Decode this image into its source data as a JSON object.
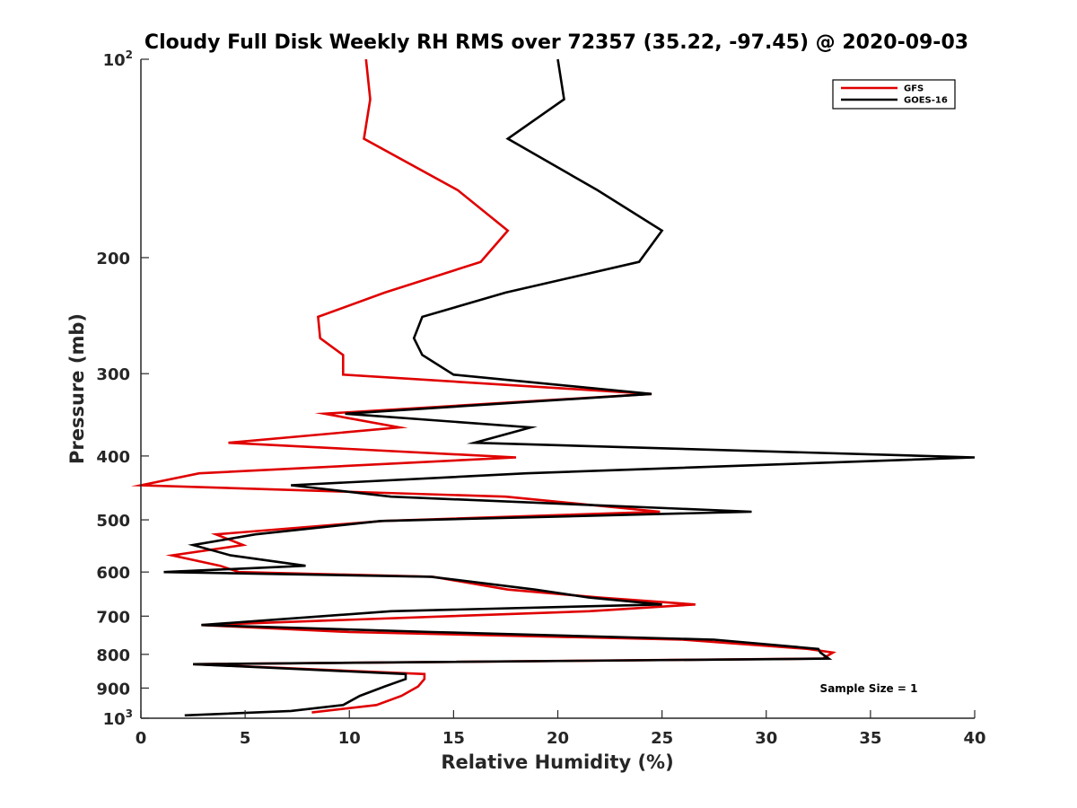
{
  "chart_data": {
    "type": "line",
    "title": "Cloudy Full Disk Weekly RH RMS over 72357 (35.22, -97.45) @ 2020-09-03",
    "xlabel": "Relative Humidity (%)",
    "ylabel": "Pressure (mb)",
    "xlim": [
      0,
      40
    ],
    "ylim": [
      100,
      1000
    ],
    "y_scale": "log",
    "y_reversed": true,
    "grid": false,
    "legend_position": "top-right",
    "x_ticks": [
      "0",
      "5",
      "10",
      "15",
      "20",
      "25",
      "30",
      "35",
      "40"
    ],
    "x_tick_values": [
      0,
      5,
      10,
      15,
      20,
      25,
      30,
      35,
      40
    ],
    "y_ticks": [
      {
        "value": 100,
        "base": "10",
        "exp": "2"
      },
      {
        "value": 200,
        "base": "200",
        "exp": ""
      },
      {
        "value": 300,
        "base": "300",
        "exp": ""
      },
      {
        "value": 400,
        "base": "400",
        "exp": ""
      },
      {
        "value": 500,
        "base": "500",
        "exp": ""
      },
      {
        "value": 600,
        "base": "600",
        "exp": ""
      },
      {
        "value": 700,
        "base": "700",
        "exp": ""
      },
      {
        "value": 800,
        "base": "800",
        "exp": ""
      },
      {
        "value": 900,
        "base": "900",
        "exp": ""
      },
      {
        "value": 1000,
        "base": "10",
        "exp": "3"
      }
    ],
    "annotation": "Sample Size = 1",
    "series": [
      {
        "name": "GFS",
        "color": "#e00000",
        "points": [
          [
            10.8,
            100
          ],
          [
            11.0,
            115
          ],
          [
            10.7,
            132
          ],
          [
            15.2,
            158
          ],
          [
            17.6,
            182
          ],
          [
            16.3,
            203
          ],
          [
            11.7,
            226
          ],
          [
            8.5,
            246
          ],
          [
            8.6,
            265
          ],
          [
            9.7,
            281
          ],
          [
            9.7,
            301
          ],
          [
            24.5,
            322
          ],
          [
            8.8,
            345
          ],
          [
            12.4,
            362
          ],
          [
            4.2,
            382
          ],
          [
            18.0,
            402
          ],
          [
            2.8,
            425
          ],
          [
            0.0,
            443
          ],
          [
            17.5,
            461
          ],
          [
            24.9,
            486
          ],
          [
            11.6,
            502
          ],
          [
            3.6,
            526
          ],
          [
            4.9,
            546
          ],
          [
            1.5,
            566
          ],
          [
            3.8,
            587
          ],
          [
            4.7,
            600
          ],
          [
            14.0,
            610
          ],
          [
            17.6,
            638
          ],
          [
            22.0,
            656
          ],
          [
            26.6,
            672
          ],
          [
            21.5,
            688
          ],
          [
            2.9,
            722
          ],
          [
            10.0,
            740
          ],
          [
            26.0,
            760
          ],
          [
            32.0,
            785
          ],
          [
            33.2,
            795
          ],
          [
            32.7,
            812
          ],
          [
            2.5,
            828
          ],
          [
            13.6,
            857
          ],
          [
            13.6,
            872
          ],
          [
            13.3,
            895
          ],
          [
            12.5,
            925
          ],
          [
            11.3,
            955
          ],
          [
            8.2,
            980
          ]
        ]
      },
      {
        "name": "GOES-16",
        "color": "#000000",
        "points": [
          [
            20.0,
            100
          ],
          [
            20.3,
            115
          ],
          [
            17.6,
            132
          ],
          [
            21.9,
            158
          ],
          [
            25.0,
            182
          ],
          [
            23.9,
            203
          ],
          [
            17.5,
            226
          ],
          [
            13.5,
            246
          ],
          [
            13.1,
            265
          ],
          [
            13.5,
            281
          ],
          [
            15.0,
            301
          ],
          [
            24.5,
            322
          ],
          [
            9.8,
            345
          ],
          [
            18.7,
            362
          ],
          [
            16.0,
            382
          ],
          [
            40.0,
            402
          ],
          [
            18.5,
            425
          ],
          [
            7.2,
            443
          ],
          [
            12.0,
            461
          ],
          [
            29.3,
            486
          ],
          [
            11.5,
            502
          ],
          [
            5.5,
            526
          ],
          [
            2.5,
            546
          ],
          [
            4.3,
            566
          ],
          [
            7.9,
            587
          ],
          [
            1.1,
            600
          ],
          [
            13.9,
            610
          ],
          [
            18.9,
            638
          ],
          [
            21.5,
            656
          ],
          [
            25.0,
            672
          ],
          [
            12.0,
            688
          ],
          [
            2.9,
            722
          ],
          [
            14.0,
            740
          ],
          [
            27.5,
            760
          ],
          [
            32.5,
            785
          ],
          [
            32.6,
            795
          ],
          [
            33.0,
            812
          ],
          [
            2.5,
            828
          ],
          [
            12.7,
            857
          ],
          [
            12.7,
            872
          ],
          [
            11.7,
            895
          ],
          [
            10.5,
            925
          ],
          [
            9.7,
            955
          ],
          [
            7.2,
            975
          ],
          [
            2.1,
            990
          ]
        ]
      }
    ]
  }
}
